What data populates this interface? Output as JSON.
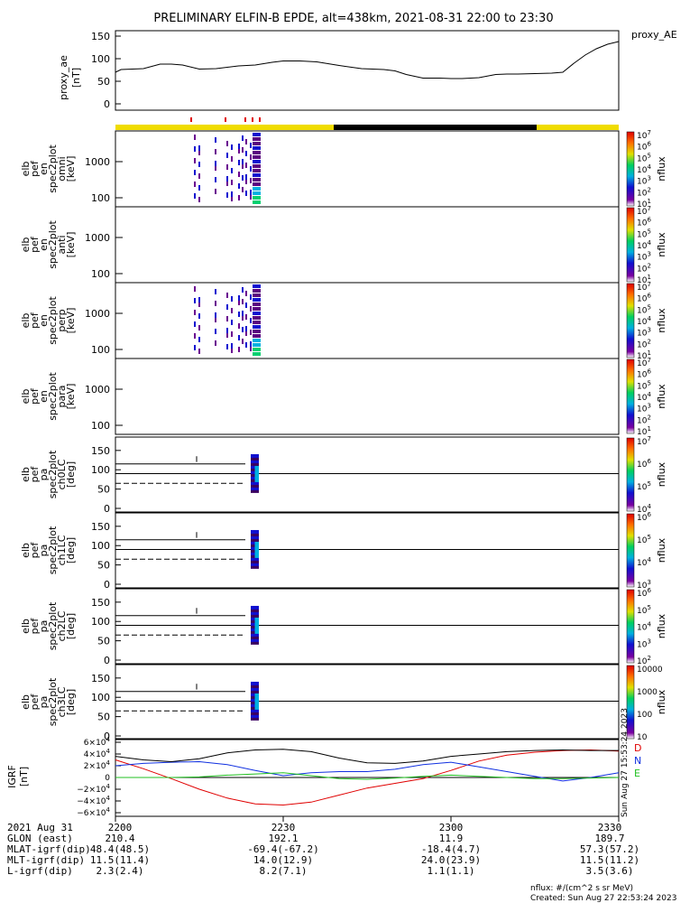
{
  "title": "PRELIMINARY ELFIN-B EPDE, alt=438km, 2021-08-31 22:00 to 23:30",
  "proxy_ae": {
    "ylabel_1": "proxy_ae",
    "ylabel_2": "[nT]",
    "legend": "proxy_AE",
    "yticks": [
      "150",
      "100",
      "50",
      "0"
    ],
    "chart_data": {
      "type": "line",
      "x_minutes": [
        0,
        1,
        3,
        5,
        8,
        10,
        12,
        15,
        18,
        22,
        25,
        28,
        30,
        33,
        36,
        40,
        44,
        48,
        50,
        52,
        55,
        58,
        60,
        62,
        65,
        68,
        70,
        72,
        75,
        78,
        80,
        82,
        84,
        86,
        88,
        90
      ],
      "values": [
        70,
        76,
        77,
        78,
        88,
        88,
        86,
        77,
        78,
        84,
        86,
        92,
        95,
        95,
        93,
        85,
        78,
        76,
        73,
        65,
        57,
        57,
        56,
        56,
        58,
        65,
        66,
        66,
        67,
        68,
        70,
        90,
        108,
        122,
        132,
        138
      ],
      "ylim": [
        0,
        150
      ]
    }
  },
  "orbit_bar": {
    "colors": [
      "#f0dc00",
      "#000000",
      "#f0dc00"
    ],
    "note_ticks_color": "#e00000"
  },
  "spec_panels": [
    {
      "labels": [
        "elb",
        "pef",
        "en",
        "spec2plot",
        "omni",
        "[keV]"
      ],
      "yticks": [
        "1000",
        "100"
      ],
      "cbar_ticks": [
        "10^7",
        "10^6",
        "10^5",
        "10^4",
        "10^3",
        "10^2",
        "10^1"
      ],
      "cbar_label": "nflux"
    },
    {
      "labels": [
        "elb",
        "pef",
        "en",
        "spec2plot",
        "anti",
        "[keV]"
      ],
      "yticks": [
        "1000",
        "100"
      ],
      "cbar_ticks": [
        "10^7",
        "10^6",
        "10^5",
        "10^4",
        "10^3",
        "10^2",
        "10^1"
      ],
      "cbar_label": "nflux"
    },
    {
      "labels": [
        "elb",
        "pef",
        "en",
        "spec2plot",
        "perp",
        "[keV]"
      ],
      "yticks": [
        "1000",
        "100"
      ],
      "cbar_ticks": [
        "10^7",
        "10^6",
        "10^5",
        "10^4",
        "10^3",
        "10^2",
        "10^1"
      ],
      "cbar_label": "nflux"
    },
    {
      "labels": [
        "elb",
        "pef",
        "en",
        "spec2plot",
        "para",
        "[keV]"
      ],
      "yticks": [
        "1000",
        "100"
      ],
      "cbar_ticks": [
        "10^7",
        "10^6",
        "10^5",
        "10^4",
        "10^3",
        "10^2",
        "10^1"
      ],
      "cbar_label": "nflux"
    }
  ],
  "pa_panels": [
    {
      "labels": [
        "elb",
        "pef",
        "pa",
        "spec2plot",
        "ch0LC",
        "[deg]"
      ],
      "yticks": [
        "150",
        "100",
        "50",
        "0"
      ],
      "cbar_ticks": [
        "10^7",
        "10^6",
        "10^5",
        "10^4"
      ],
      "cbar_label": "nflux"
    },
    {
      "labels": [
        "elb",
        "pef",
        "pa",
        "spec2plot",
        "ch1LC",
        "[deg]"
      ],
      "yticks": [
        "150",
        "100",
        "50",
        "0"
      ],
      "cbar_ticks": [
        "10^6",
        "10^5",
        "10^4",
        "10^3"
      ],
      "cbar_label": "nflux"
    },
    {
      "labels": [
        "elb",
        "pef",
        "pa",
        "spec2plot",
        "ch2LC",
        "[deg]"
      ],
      "yticks": [
        "150",
        "100",
        "50",
        "0"
      ],
      "cbar_ticks": [
        "10^6",
        "10^5",
        "10^4",
        "10^3",
        "10^2"
      ],
      "cbar_label": "nflux"
    },
    {
      "labels": [
        "elb",
        "pef",
        "pa",
        "spec2plot",
        "ch3LC",
        "[deg]"
      ],
      "yticks": [
        "150",
        "100",
        "50",
        "0"
      ],
      "cbar_ticks": [
        "10000",
        "1000",
        "100",
        "10"
      ],
      "cbar_label": "nflux"
    }
  ],
  "igrf": {
    "ylabel_1": "IGRF",
    "ylabel_2": "[nT]",
    "yticks": [
      "6×10^4",
      "4×10^4",
      "2×10^4",
      "0",
      "−2×10^4",
      "−4×10^4",
      "−6×10^4"
    ],
    "legend": [
      {
        "name": "D",
        "color": "#e00000"
      },
      {
        "name": "N",
        "color": "#1030e0"
      },
      {
        "name": "E",
        "color": "#20c020"
      }
    ],
    "chart_data": {
      "type": "line",
      "ylim": [
        -60000,
        60000
      ],
      "x_minutes": [
        0,
        5,
        10,
        15,
        20,
        25,
        30,
        35,
        40,
        45,
        50,
        55,
        60,
        65,
        70,
        75,
        80,
        85,
        90
      ],
      "series": [
        {
          "name": "D",
          "color": "#e00000",
          "values": [
            30000,
            15000,
            -2000,
            -20000,
            -35000,
            -45000,
            -47000,
            -42000,
            -30000,
            -18000,
            -10000,
            -2000,
            12000,
            28000,
            38000,
            43000,
            46000,
            47000,
            45000
          ]
        },
        {
          "name": "N",
          "color": "#1030e0",
          "values": [
            20000,
            24000,
            26000,
            27000,
            22000,
            12000,
            3000,
            8000,
            10000,
            10000,
            14000,
            22000,
            26000,
            18000,
            10000,
            2000,
            -6000,
            0,
            8000
          ]
        },
        {
          "name": "E",
          "color": "#20c020",
          "values": [
            0,
            0,
            0,
            1000,
            4000,
            6000,
            8000,
            3000,
            -2000,
            -3000,
            -1000,
            2000,
            4000,
            2000,
            0,
            -2000,
            -2000,
            -1000,
            0
          ]
        },
        {
          "name": "total",
          "color": "#000000",
          "values": [
            36000,
            30000,
            27000,
            32000,
            42000,
            47000,
            48000,
            44000,
            33000,
            25000,
            24000,
            28000,
            36000,
            40000,
            44000,
            46000,
            47000,
            46000,
            46000
          ]
        }
      ]
    }
  },
  "bottom_table": {
    "row_labels": [
      "2021 Aug 31",
      "GLON (east)",
      "MLAT-igrf(dip)",
      "MLT-igrf(dip)",
      "L-igrf(dip)"
    ],
    "columns": [
      {
        "time": "2200",
        "values": [
          "210.4",
          "48.4(48.5)",
          "11.5(11.4)",
          "2.3(2.4)"
        ]
      },
      {
        "time": "2230",
        "values": [
          "192.1",
          "-69.4(-67.2)",
          "14.0(12.9)",
          "8.2(7.1)"
        ]
      },
      {
        "time": "2300",
        "values": [
          "11.9",
          "-18.4(4.7)",
          "24.0(23.9)",
          "1.1(1.1)"
        ]
      },
      {
        "time": "2330",
        "values": [
          "189.7",
          "57.3(57.2)",
          "11.5(11.2)",
          "3.5(3.6)"
        ]
      }
    ]
  },
  "footer": {
    "nflux_units": "nflux: #/(cm^2 s sr MeV)",
    "created": "Created: Sun Aug 27 22:53:24 2023",
    "side_stamp": "Sun Aug 27 15:53:24 2023"
  }
}
